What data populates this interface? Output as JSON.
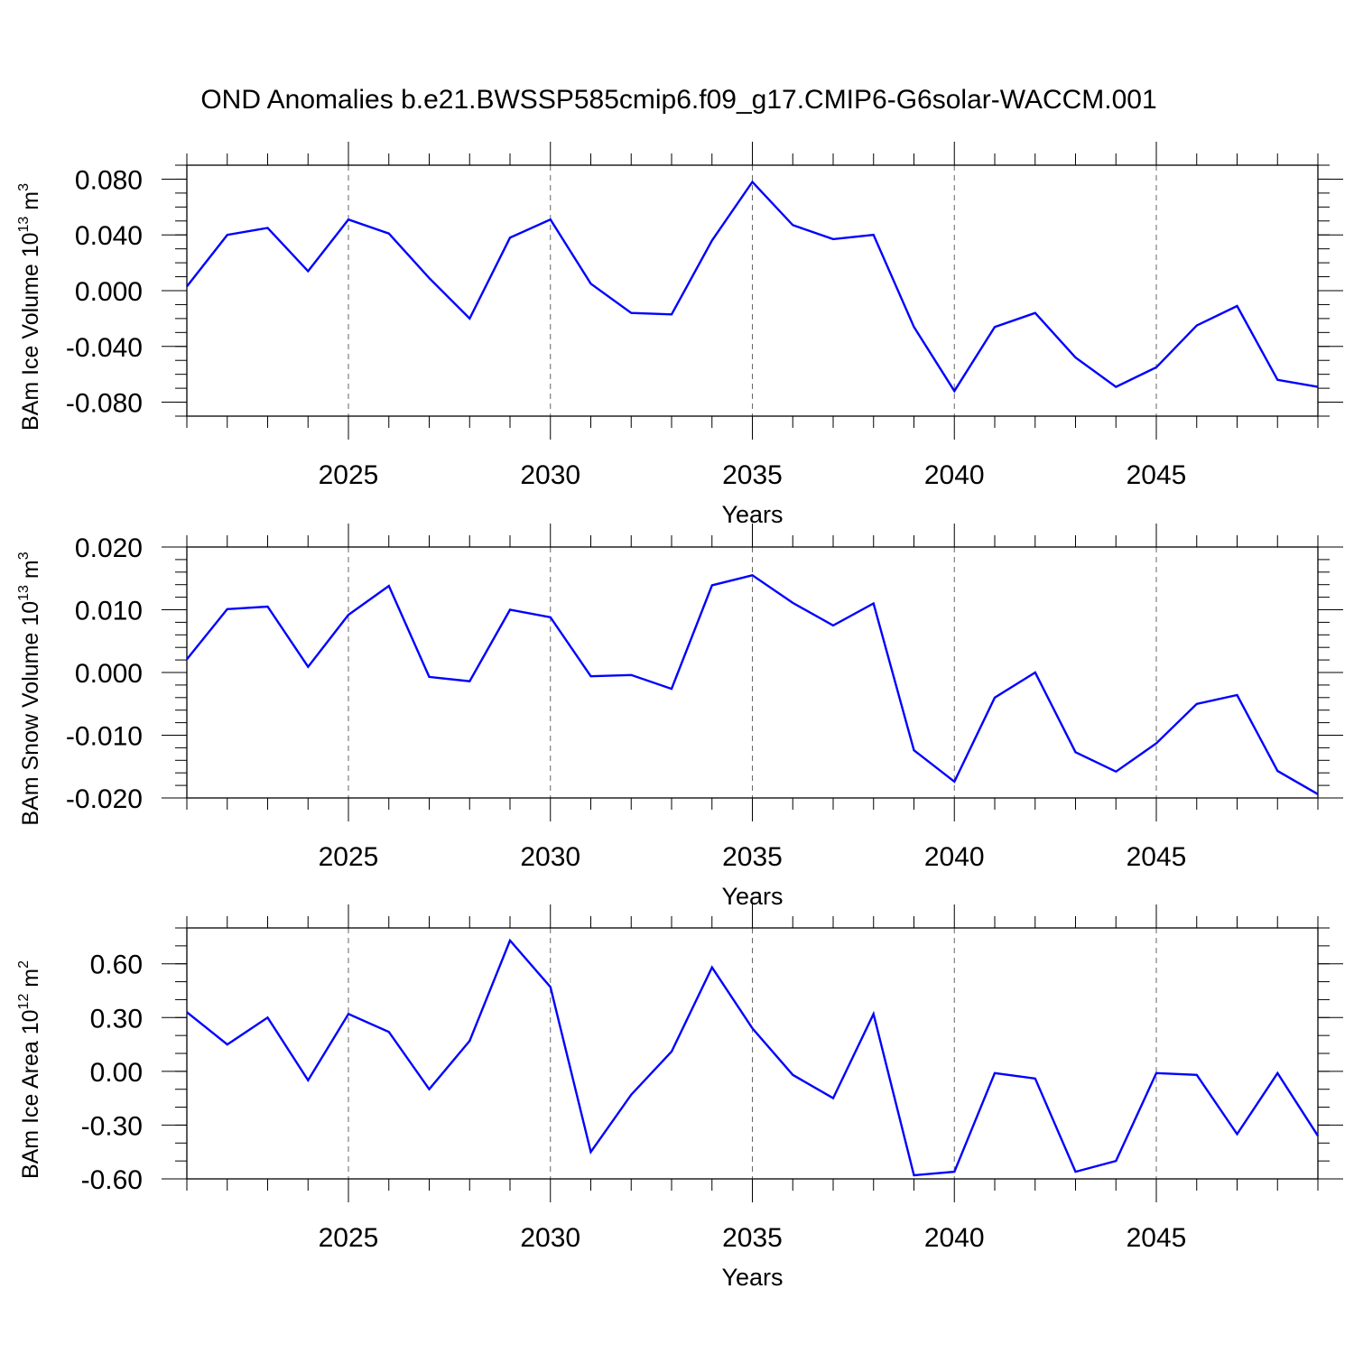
{
  "title": "OND Anomalies b.e21.BWSSP585cmip6.f09_g17.CMIP6-G6solar-WACCM.001",
  "chart_data": [
    {
      "type": "line",
      "id": "ice-volume",
      "ylabel_main": "BAm Ice Volume 10",
      "ylabel_exp": "13",
      "ylabel_unit": " m",
      "ylabel_unit_exp": "3",
      "xlabel": "Years",
      "xlim": [
        2021,
        2049
      ],
      "ylim": [
        -0.09,
        0.09
      ],
      "yticks": [
        -0.08,
        -0.04,
        0.0,
        0.04,
        0.08
      ],
      "ytick_labels": [
        "-0.080",
        "-0.040",
        "0.000",
        "0.040",
        "0.080"
      ],
      "yminor_step": 0.01,
      "xticks": [
        2025,
        2030,
        2035,
        2040,
        2045
      ],
      "xtick_labels": [
        "2025",
        "2030",
        "2035",
        "2040",
        "2045"
      ],
      "grid": "dashed vertical at major x ticks",
      "series": [
        {
          "name": "BAm Ice Volume",
          "color": "#0000ff",
          "x": [
            2021,
            2022,
            2023,
            2024,
            2025,
            2026,
            2027,
            2028,
            2029,
            2030,
            2031,
            2032,
            2033,
            2034,
            2035,
            2036,
            2037,
            2038,
            2039,
            2040,
            2041,
            2042,
            2043,
            2044,
            2045,
            2046,
            2047,
            2048,
            2049
          ],
          "values": [
            0.003,
            0.04,
            0.045,
            0.014,
            0.051,
            0.041,
            0.009,
            -0.02,
            0.038,
            0.051,
            0.005,
            -0.016,
            -0.017,
            0.036,
            0.078,
            0.047,
            0.037,
            0.04,
            -0.026,
            -0.072,
            -0.026,
            -0.016,
            -0.048,
            -0.069,
            -0.055,
            -0.025,
            -0.011,
            -0.064,
            -0.069
          ]
        }
      ]
    },
    {
      "type": "line",
      "id": "snow-volume",
      "ylabel_main": "BAm Snow Volume 10",
      "ylabel_exp": "13",
      "ylabel_unit": " m",
      "ylabel_unit_exp": "3",
      "xlabel": "Years",
      "xlim": [
        2021,
        2049
      ],
      "ylim": [
        -0.02,
        0.02
      ],
      "yticks": [
        -0.02,
        -0.01,
        0.0,
        0.01,
        0.02
      ],
      "ytick_labels": [
        "-0.020",
        "-0.010",
        "0.000",
        "0.010",
        "0.020"
      ],
      "yminor_step": 0.002,
      "xticks": [
        2025,
        2030,
        2035,
        2040,
        2045
      ],
      "xtick_labels": [
        "2025",
        "2030",
        "2035",
        "2040",
        "2045"
      ],
      "grid": "dashed vertical at major x ticks",
      "series": [
        {
          "name": "BAm Snow Volume",
          "color": "#0000ff",
          "x": [
            2021,
            2022,
            2023,
            2024,
            2025,
            2026,
            2027,
            2028,
            2029,
            2030,
            2031,
            2032,
            2033,
            2034,
            2035,
            2036,
            2037,
            2038,
            2039,
            2040,
            2041,
            2042,
            2043,
            2044,
            2045,
            2046,
            2047,
            2048,
            2049
          ],
          "values": [
            0.0021,
            0.0101,
            0.0105,
            0.0009,
            0.0092,
            0.0138,
            -0.0007,
            -0.0014,
            0.01,
            0.0088,
            -0.0006,
            -0.0004,
            -0.0026,
            0.0139,
            0.0155,
            0.0111,
            0.0075,
            0.011,
            -0.0124,
            -0.0174,
            -0.004,
            0.0,
            -0.0127,
            -0.0158,
            -0.0113,
            -0.005,
            -0.0036,
            -0.0157,
            -0.0194
          ]
        }
      ]
    },
    {
      "type": "line",
      "id": "ice-area",
      "ylabel_main": "BAm Ice Area 10",
      "ylabel_exp": "12",
      "ylabel_unit": " m",
      "ylabel_unit_exp": "2",
      "xlabel": "Years",
      "xlim": [
        2021,
        2049
      ],
      "ylim": [
        -0.6,
        0.8
      ],
      "yticks": [
        -0.6,
        -0.3,
        0.0,
        0.3,
        0.6
      ],
      "ytick_labels": [
        "-0.60",
        "-0.30",
        "0.00",
        "0.30",
        "0.60"
      ],
      "yminor_step": 0.1,
      "xticks": [
        2025,
        2030,
        2035,
        2040,
        2045
      ],
      "xtick_labels": [
        "2025",
        "2030",
        "2035",
        "2040",
        "2045"
      ],
      "grid": "dashed vertical at major x ticks",
      "series": [
        {
          "name": "BAm Ice Area",
          "color": "#0000ff",
          "x": [
            2021,
            2022,
            2023,
            2024,
            2025,
            2026,
            2027,
            2028,
            2029,
            2030,
            2031,
            2032,
            2033,
            2034,
            2035,
            2036,
            2037,
            2038,
            2039,
            2040,
            2041,
            2042,
            2043,
            2044,
            2045,
            2046,
            2047,
            2048,
            2049
          ],
          "values": [
            0.33,
            0.15,
            0.3,
            -0.05,
            0.32,
            0.22,
            -0.1,
            0.17,
            0.73,
            0.47,
            -0.45,
            -0.13,
            0.11,
            0.58,
            0.24,
            -0.02,
            -0.15,
            0.32,
            -0.58,
            -0.56,
            -0.01,
            -0.04,
            -0.56,
            -0.5,
            -0.01,
            -0.02,
            -0.35,
            -0.01,
            -0.36
          ]
        }
      ]
    }
  ]
}
